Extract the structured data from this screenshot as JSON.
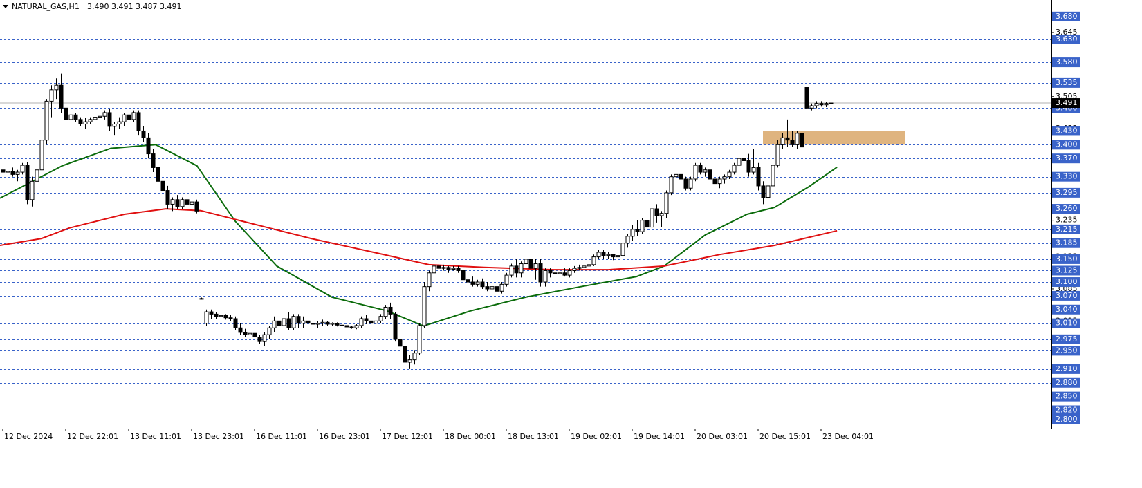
{
  "chart_data": {
    "type": "candlestick",
    "title": "NATURAL_GAS,H1",
    "ohlc_header": "3.490 3.491 3.487 3.491",
    "xlim": [
      -0.57,
      216.57
    ],
    "ylim": [
      2.78,
      3.716
    ],
    "xticks": [
      {
        "value": 0,
        "label": "12 Dec 2024"
      },
      {
        "value": 13,
        "label": "12 Dec 22:01"
      },
      {
        "value": 26,
        "label": "13 Dec 11:01"
      },
      {
        "value": 39,
        "label": "13 Dec 23:01"
      },
      {
        "value": 52,
        "label": "16 Dec 11:01"
      },
      {
        "value": 65,
        "label": "16 Dec 23:01"
      },
      {
        "value": 78,
        "label": "17 Dec 12:01"
      },
      {
        "value": 91,
        "label": "18 Dec 00:01"
      },
      {
        "value": 104,
        "label": "18 Dec 13:01"
      },
      {
        "value": 117,
        "label": "19 Dec 02:01"
      },
      {
        "value": 130,
        "label": "19 Dec 14:01"
      },
      {
        "value": 143,
        "label": "20 Dec 03:01"
      },
      {
        "value": 156,
        "label": "20 Dec 15:01"
      },
      {
        "value": 169,
        "label": "23 Dec 04:01"
      }
    ],
    "yticks": [
      3.645,
      3.505,
      3.435,
      3.235,
      3.155,
      3.085,
      3.015
    ],
    "levels": [
      {
        "value": 3.68,
        "label": "3.680"
      },
      {
        "value": 3.63,
        "label": "3.630"
      },
      {
        "value": 3.58,
        "label": "3.580"
      },
      {
        "value": 3.535,
        "label": "3.535"
      },
      {
        "value": 3.48,
        "label": "3.480"
      },
      {
        "value": 3.43,
        "label": "3.430"
      },
      {
        "value": 3.4,
        "label": "3.400"
      },
      {
        "value": 3.37,
        "label": "3.370"
      },
      {
        "value": 3.33,
        "label": "3.330"
      },
      {
        "value": 3.295,
        "label": "3.295"
      },
      {
        "value": 3.26,
        "label": "3.260"
      },
      {
        "value": 3.215,
        "label": "3.215"
      },
      {
        "value": 3.185,
        "label": "3.185"
      },
      {
        "value": 3.15,
        "label": "3.150"
      },
      {
        "value": 3.125,
        "label": "3.125"
      },
      {
        "value": 3.1,
        "label": "3.100"
      },
      {
        "value": 3.07,
        "label": "3.070"
      },
      {
        "value": 3.04,
        "label": "3.040"
      },
      {
        "value": 3.01,
        "label": "3.010"
      },
      {
        "value": 2.975,
        "label": "2.975"
      },
      {
        "value": 2.95,
        "label": "2.950"
      },
      {
        "value": 2.91,
        "label": "2.910"
      },
      {
        "value": 2.88,
        "label": "2.880"
      },
      {
        "value": 2.85,
        "label": "2.850"
      },
      {
        "value": 2.82,
        "label": "2.820"
      },
      {
        "value": 2.8,
        "label": "2.800"
      }
    ],
    "level_color": "#3a63c9",
    "last_price": 3.491,
    "up_color": "#ffffff",
    "down_color": "#000000",
    "zone": {
      "x": [
        157,
        186.4
      ],
      "y": [
        3.4,
        3.43
      ],
      "color": "#dfb47f"
    },
    "lines": [
      {
        "color": "#0a6b0a",
        "x": [
          -0.57,
          12.3,
          22.3,
          31.6,
          40.1,
          48,
          56.6,
          68,
          79.4,
          86.9,
          96.6,
          108,
          119.4,
          130.9,
          136.6,
          145.1,
          153.7,
          159.4,
          166.6,
          172.3
        ],
        "values": [
          3.283,
          3.354,
          3.392,
          3.4,
          3.354,
          3.233,
          3.135,
          3.067,
          3.037,
          3.004,
          3.037,
          3.067,
          3.09,
          3.112,
          3.135,
          3.203,
          3.248,
          3.263,
          3.309,
          3.351
        ]
      },
      {
        "color": "#e01010",
        "x": [
          -0.57,
          8,
          13.7,
          25.1,
          33.7,
          40.9,
          49.4,
          63.7,
          76.6,
          88,
          99.4,
          113.7,
          125.1,
          136.6,
          148,
          159.4,
          172.3
        ],
        "values": [
          3.18,
          3.195,
          3.218,
          3.248,
          3.26,
          3.256,
          3.233,
          3.195,
          3.165,
          3.138,
          3.132,
          3.127,
          3.127,
          3.135,
          3.16,
          3.18,
          3.212
        ]
      }
    ],
    "candles": [
      [
        3.345,
        3.352,
        3.335,
        3.34
      ],
      [
        3.34,
        3.348,
        3.332,
        3.342
      ],
      [
        3.342,
        3.35,
        3.33,
        3.335
      ],
      [
        3.335,
        3.345,
        3.32,
        3.34
      ],
      [
        3.34,
        3.36,
        3.335,
        3.355
      ],
      [
        3.355,
        3.362,
        3.27,
        3.28
      ],
      [
        3.28,
        3.33,
        3.265,
        3.32
      ],
      [
        3.32,
        3.35,
        3.31,
        3.345
      ],
      [
        3.345,
        3.42,
        3.34,
        3.41
      ],
      [
        3.41,
        3.5,
        3.4,
        3.495
      ],
      [
        3.495,
        3.53,
        3.46,
        3.52
      ],
      [
        3.52,
        3.545,
        3.5,
        3.53
      ],
      [
        3.53,
        3.555,
        3.47,
        3.48
      ],
      [
        3.48,
        3.49,
        3.44,
        3.455
      ],
      [
        3.455,
        3.475,
        3.445,
        3.465
      ],
      [
        3.465,
        3.47,
        3.45,
        3.455
      ],
      [
        3.455,
        3.46,
        3.44,
        3.445
      ],
      [
        3.445,
        3.458,
        3.435,
        3.45
      ],
      [
        3.45,
        3.46,
        3.445,
        3.455
      ],
      [
        3.455,
        3.465,
        3.448,
        3.46
      ],
      [
        3.46,
        3.47,
        3.45,
        3.462
      ],
      [
        3.462,
        3.475,
        3.455,
        3.47
      ],
      [
        3.47,
        3.478,
        3.43,
        3.44
      ],
      [
        3.44,
        3.45,
        3.42,
        3.445
      ],
      [
        3.445,
        3.46,
        3.435,
        3.45
      ],
      [
        3.45,
        3.47,
        3.44,
        3.465
      ],
      [
        3.465,
        3.47,
        3.445,
        3.455
      ],
      [
        3.455,
        3.475,
        3.45,
        3.47
      ],
      [
        3.47,
        3.475,
        3.42,
        3.43
      ],
      [
        3.43,
        3.44,
        3.405,
        3.415
      ],
      [
        3.415,
        3.425,
        3.37,
        3.38
      ],
      [
        3.38,
        3.39,
        3.34,
        3.35
      ],
      [
        3.35,
        3.36,
        3.31,
        3.32
      ],
      [
        3.32,
        3.33,
        3.29,
        3.3
      ],
      [
        3.3,
        3.31,
        3.26,
        3.27
      ],
      [
        3.27,
        3.285,
        3.255,
        3.28
      ],
      [
        3.28,
        3.29,
        3.26,
        3.265
      ],
      [
        3.265,
        3.285,
        3.26,
        3.28
      ],
      [
        3.28,
        3.29,
        3.265,
        3.27
      ],
      [
        3.27,
        3.28,
        3.262,
        3.275
      ],
      [
        3.275,
        3.28,
        3.25,
        3.255
      ],
      [
        3.064,
        3.066,
        3.062,
        3.064
      ],
      [
        3.01,
        3.04,
        3.005,
        3.035
      ],
      [
        3.035,
        3.04,
        3.02,
        3.03
      ],
      [
        3.03,
        3.035,
        3.02,
        3.025
      ],
      [
        3.025,
        3.03,
        3.02,
        3.027
      ],
      [
        3.027,
        3.03,
        3.018,
        3.022
      ],
      [
        3.022,
        3.028,
        3.015,
        3.02
      ],
      [
        3.02,
        3.025,
        2.995,
        3.0
      ],
      [
        3.0,
        3.01,
        2.985,
        2.99
      ],
      [
        2.99,
        2.998,
        2.98,
        2.985
      ],
      [
        2.985,
        2.99,
        2.98,
        2.988
      ],
      [
        2.988,
        2.992,
        2.975,
        2.98
      ],
      [
        2.98,
        2.985,
        2.965,
        2.97
      ],
      [
        2.97,
        2.99,
        2.96,
        2.985
      ],
      [
        2.985,
        3.005,
        2.975,
        3.0
      ],
      [
        3.0,
        3.025,
        2.99,
        3.015
      ],
      [
        3.015,
        3.03,
        3.0,
        3.005
      ],
      [
        3.005,
        3.03,
        2.995,
        3.02
      ],
      [
        3.02,
        3.035,
        2.995,
        3.0
      ],
      [
        3.0,
        3.03,
        2.995,
        3.025
      ],
      [
        3.025,
        3.03,
        3.0,
        3.01
      ],
      [
        3.01,
        3.025,
        3.0,
        3.015
      ],
      [
        3.015,
        3.025,
        3.005,
        3.01
      ],
      [
        3.01,
        3.022,
        3.003,
        3.008
      ],
      [
        3.008,
        3.015,
        3.0,
        3.01
      ],
      [
        3.01,
        3.018,
        3.005,
        3.012
      ],
      [
        3.012,
        3.015,
        3.005,
        3.008
      ],
      [
        3.008,
        3.012,
        3.005,
        3.01
      ],
      [
        3.01,
        3.012,
        3.003,
        3.006
      ],
      [
        3.006,
        3.01,
        3.0,
        3.005
      ],
      [
        3.005,
        3.008,
        3.0,
        3.002
      ],
      [
        3.002,
        3.005,
        2.998,
        3.0
      ],
      [
        3.0,
        3.008,
        2.997,
        3.005
      ],
      [
        3.005,
        3.025,
        3.0,
        3.02
      ],
      [
        3.02,
        3.028,
        3.008,
        3.015
      ],
      [
        3.015,
        3.03,
        3.005,
        3.01
      ],
      [
        3.01,
        3.02,
        3.005,
        3.015
      ],
      [
        3.015,
        3.03,
        3.01,
        3.025
      ],
      [
        3.025,
        3.05,
        3.02,
        3.045
      ],
      [
        3.045,
        3.055,
        3.02,
        3.03
      ],
      [
        3.03,
        3.035,
        2.97,
        2.975
      ],
      [
        2.975,
        2.985,
        2.95,
        2.96
      ],
      [
        2.96,
        2.965,
        2.92,
        2.925
      ],
      [
        2.925,
        2.94,
        2.91,
        2.93
      ],
      [
        2.93,
        2.95,
        2.92,
        2.945
      ],
      [
        2.945,
        3.01,
        2.94,
        3.005
      ],
      [
        3.005,
        3.1,
        3.0,
        3.09
      ],
      [
        3.09,
        3.125,
        3.08,
        3.12
      ],
      [
        3.12,
        3.145,
        3.11,
        3.135
      ],
      [
        3.135,
        3.14,
        3.12,
        3.13
      ],
      [
        3.13,
        3.138,
        3.125,
        3.132
      ],
      [
        3.132,
        3.135,
        3.12,
        3.128
      ],
      [
        3.128,
        3.135,
        3.125,
        3.13
      ],
      [
        3.13,
        3.135,
        3.12,
        3.125
      ],
      [
        3.125,
        3.13,
        3.1,
        3.105
      ],
      [
        3.105,
        3.11,
        3.095,
        3.1
      ],
      [
        3.1,
        3.112,
        3.09,
        3.095
      ],
      [
        3.095,
        3.105,
        3.09,
        3.1
      ],
      [
        3.1,
        3.108,
        3.085,
        3.09
      ],
      [
        3.09,
        3.1,
        3.08,
        3.085
      ],
      [
        3.085,
        3.095,
        3.075,
        3.09
      ],
      [
        3.09,
        3.1,
        3.078,
        3.08
      ],
      [
        3.08,
        3.1,
        3.075,
        3.095
      ],
      [
        3.095,
        3.12,
        3.09,
        3.115
      ],
      [
        3.115,
        3.14,
        3.11,
        3.135
      ],
      [
        3.135,
        3.15,
        3.11,
        3.12
      ],
      [
        3.12,
        3.145,
        3.11,
        3.14
      ],
      [
        3.14,
        3.155,
        3.13,
        3.15
      ],
      [
        3.15,
        3.16,
        3.12,
        3.13
      ],
      [
        3.13,
        3.15,
        3.105,
        3.14
      ],
      [
        3.14,
        3.15,
        3.09,
        3.1
      ],
      [
        3.1,
        3.13,
        3.09,
        3.125
      ],
      [
        3.125,
        3.13,
        3.11,
        3.12
      ],
      [
        3.12,
        3.13,
        3.11,
        3.118
      ],
      [
        3.118,
        3.125,
        3.11,
        3.12
      ],
      [
        3.12,
        3.13,
        3.112,
        3.115
      ],
      [
        3.115,
        3.13,
        3.11,
        3.125
      ],
      [
        3.125,
        3.135,
        3.12,
        3.13
      ],
      [
        3.13,
        3.138,
        3.125,
        3.132
      ],
      [
        3.132,
        3.14,
        3.128,
        3.135
      ],
      [
        3.135,
        3.14,
        3.13,
        3.138
      ],
      [
        3.138,
        3.16,
        3.135,
        3.155
      ],
      [
        3.155,
        3.17,
        3.15,
        3.165
      ],
      [
        3.165,
        3.17,
        3.15,
        3.158
      ],
      [
        3.158,
        3.165,
        3.15,
        3.16
      ],
      [
        3.16,
        3.162,
        3.148,
        3.155
      ],
      [
        3.155,
        3.16,
        3.145,
        3.158
      ],
      [
        3.158,
        3.19,
        3.155,
        3.185
      ],
      [
        3.185,
        3.205,
        3.175,
        3.2
      ],
      [
        3.2,
        3.225,
        3.19,
        3.215
      ],
      [
        3.215,
        3.235,
        3.2,
        3.21
      ],
      [
        3.21,
        3.24,
        3.205,
        3.235
      ],
      [
        3.235,
        3.25,
        3.2,
        3.22
      ],
      [
        3.22,
        3.27,
        3.215,
        3.26
      ],
      [
        3.26,
        3.27,
        3.23,
        3.245
      ],
      [
        3.245,
        3.255,
        3.22,
        3.25
      ],
      [
        3.25,
        3.3,
        3.24,
        3.295
      ],
      [
        3.295,
        3.335,
        3.29,
        3.33
      ],
      [
        3.33,
        3.345,
        3.32,
        3.335
      ],
      [
        3.335,
        3.34,
        3.32,
        3.325
      ],
      [
        3.325,
        3.33,
        3.3,
        3.305
      ],
      [
        3.305,
        3.33,
        3.3,
        3.325
      ],
      [
        3.325,
        3.36,
        3.32,
        3.355
      ],
      [
        3.355,
        3.36,
        3.335,
        3.34
      ],
      [
        3.34,
        3.35,
        3.33,
        3.345
      ],
      [
        3.345,
        3.35,
        3.32,
        3.325
      ],
      [
        3.325,
        3.34,
        3.31,
        3.315
      ],
      [
        3.315,
        3.33,
        3.305,
        3.325
      ],
      [
        3.325,
        3.335,
        3.315,
        3.33
      ],
      [
        3.33,
        3.345,
        3.325,
        3.34
      ],
      [
        3.34,
        3.36,
        3.335,
        3.355
      ],
      [
        3.355,
        3.375,
        3.35,
        3.37
      ],
      [
        3.37,
        3.38,
        3.36,
        3.365
      ],
      [
        3.365,
        3.38,
        3.33,
        3.34
      ],
      [
        3.34,
        3.39,
        3.335,
        3.35
      ],
      [
        3.35,
        3.36,
        3.3,
        3.31
      ],
      [
        3.31,
        3.32,
        3.27,
        3.285
      ],
      [
        3.285,
        3.315,
        3.28,
        3.31
      ],
      [
        3.31,
        3.36,
        3.3,
        3.355
      ],
      [
        3.355,
        3.41,
        3.35,
        3.4
      ],
      [
        3.4,
        3.425,
        3.39,
        3.415
      ],
      [
        3.415,
        3.455,
        3.395,
        3.41
      ],
      [
        3.41,
        3.43,
        3.395,
        3.4
      ],
      [
        3.4,
        3.43,
        3.39,
        3.425
      ],
      [
        3.425,
        3.43,
        3.39,
        3.395
      ],
      [
        3.525,
        3.535,
        3.47,
        3.48
      ],
      [
        3.48,
        3.49,
        3.475,
        3.485
      ],
      [
        3.485,
        3.495,
        3.48,
        3.49
      ],
      [
        3.49,
        3.495,
        3.483,
        3.487
      ],
      [
        3.487,
        3.494,
        3.482,
        3.49
      ],
      [
        3.49,
        3.491,
        3.487,
        3.491
      ]
    ]
  }
}
